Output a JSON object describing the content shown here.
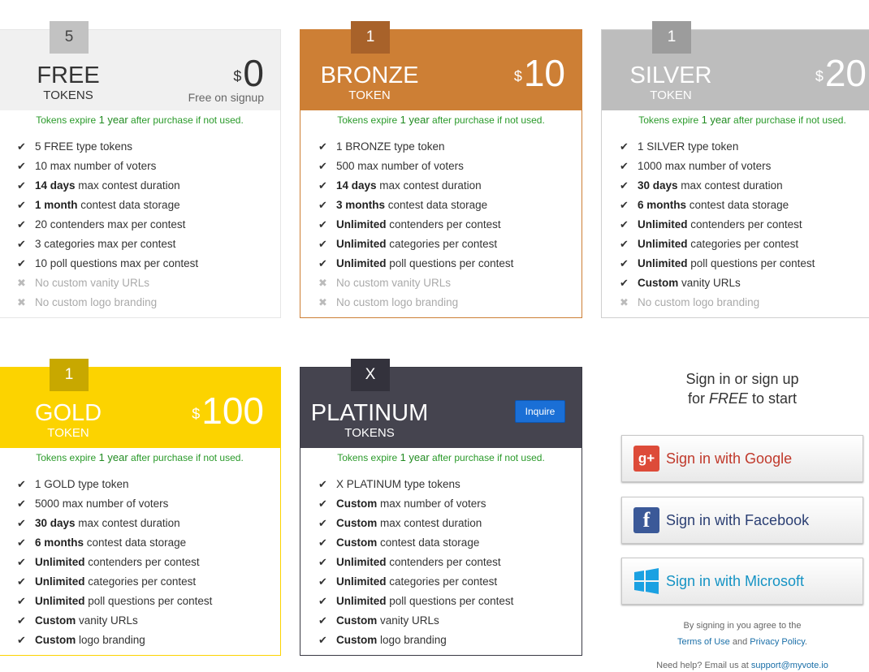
{
  "expire": {
    "pre": "Tokens expire ",
    "bold": "1 year",
    "post": " after purchase if not used."
  },
  "cards": [
    {
      "id": "free",
      "count": "5",
      "title": "FREE",
      "subtitle": "TOKENS",
      "currency": "$",
      "price": "0",
      "note": "Free on signup",
      "colors": {
        "head": "#f0f0f0",
        "badge": "#c2c2c2",
        "text": "#333333",
        "border": "#e6e6e6",
        "badgeText": "#444444"
      },
      "features": [
        {
          "b": "",
          "t": "5 FREE type tokens",
          "ok": true
        },
        {
          "b": "",
          "t": "10 max number of voters",
          "ok": true
        },
        {
          "b": "14 days",
          "t": " max contest duration",
          "ok": true
        },
        {
          "b": "1 month",
          "t": " contest data storage",
          "ok": true
        },
        {
          "b": "",
          "t": "20 contenders max per contest",
          "ok": true
        },
        {
          "b": "",
          "t": "3 categories max per contest",
          "ok": true
        },
        {
          "b": "",
          "t": "10 poll questions max per contest",
          "ok": true
        },
        {
          "b": "",
          "t": "No custom vanity URLs",
          "ok": false
        },
        {
          "b": "",
          "t": "No custom logo branding",
          "ok": false
        }
      ]
    },
    {
      "id": "bronze",
      "count": "1",
      "title": "BRONZE",
      "subtitle": "TOKEN",
      "currency": "$",
      "price": "10",
      "colors": {
        "head": "#cd7f35",
        "badge": "#a8622a",
        "text": "#ffffff",
        "border": "#cd7f35",
        "badgeText": "#ffffff"
      },
      "features": [
        {
          "b": "",
          "t": "1 BRONZE type token",
          "ok": true
        },
        {
          "b": "",
          "t": "500 max number of voters",
          "ok": true
        },
        {
          "b": "14 days",
          "t": " max contest duration",
          "ok": true
        },
        {
          "b": "3 months",
          "t": " contest data storage",
          "ok": true
        },
        {
          "b": "Unlimited",
          "t": " contenders per contest",
          "ok": true
        },
        {
          "b": "Unlimited",
          "t": " categories per contest",
          "ok": true
        },
        {
          "b": "Unlimited",
          "t": " poll questions per contest",
          "ok": true
        },
        {
          "b": "",
          "t": "No custom vanity URLs",
          "ok": false
        },
        {
          "b": "",
          "t": "No custom logo branding",
          "ok": false
        }
      ]
    },
    {
      "id": "silver",
      "count": "1",
      "title": "SILVER",
      "subtitle": "TOKEN",
      "currency": "$",
      "price": "20",
      "colors": {
        "head": "#bdbdbd",
        "badge": "#9c9c9c",
        "text": "#ffffff",
        "border": "#cfcfcf",
        "badgeText": "#ffffff"
      },
      "features": [
        {
          "b": "",
          "t": "1 SILVER type token",
          "ok": true
        },
        {
          "b": "",
          "t": "1000 max number of voters",
          "ok": true
        },
        {
          "b": "30 days",
          "t": " max contest duration",
          "ok": true
        },
        {
          "b": "6 months",
          "t": " contest data storage",
          "ok": true
        },
        {
          "b": "Unlimited",
          "t": " contenders per contest",
          "ok": true
        },
        {
          "b": "Unlimited",
          "t": " categories per contest",
          "ok": true
        },
        {
          "b": "Unlimited",
          "t": " poll questions per contest",
          "ok": true
        },
        {
          "b": "Custom",
          "t": " vanity URLs",
          "ok": true
        },
        {
          "b": "",
          "t": "No custom logo branding",
          "ok": false
        }
      ]
    },
    {
      "id": "gold",
      "count": "1",
      "title": "GOLD",
      "subtitle": "TOKEN",
      "currency": "$",
      "price": "100",
      "colors": {
        "head": "#fcd300",
        "badge": "#c8a800",
        "text": "#ffffff",
        "border": "#fcd300",
        "badgeText": "#ffffff"
      },
      "features": [
        {
          "b": "",
          "t": "1 GOLD type token",
          "ok": true
        },
        {
          "b": "",
          "t": "5000 max number of voters",
          "ok": true
        },
        {
          "b": "30 days",
          "t": " max contest duration",
          "ok": true
        },
        {
          "b": "6 months",
          "t": " contest data storage",
          "ok": true
        },
        {
          "b": "Unlimited",
          "t": " contenders per contest",
          "ok": true
        },
        {
          "b": "Unlimited",
          "t": " categories per contest",
          "ok": true
        },
        {
          "b": "Unlimited",
          "t": " poll questions per contest",
          "ok": true
        },
        {
          "b": "Custom",
          "t": " vanity URLs",
          "ok": true
        },
        {
          "b": "Custom",
          "t": " logo branding",
          "ok": true
        }
      ]
    },
    {
      "id": "platinum",
      "count": "X",
      "title": "PLATINUM",
      "subtitle": "TOKENS",
      "button": "Inquire",
      "colors": {
        "head": "#45444f",
        "badge": "#33323c",
        "text": "#ffffff",
        "border": "#3a3a44",
        "badgeText": "#ffffff"
      },
      "features": [
        {
          "b": "",
          "t": "X PLATINUM type tokens",
          "ok": true
        },
        {
          "b": "Custom",
          "t": " max number of voters",
          "ok": true
        },
        {
          "b": "Custom",
          "t": " max contest duration",
          "ok": true
        },
        {
          "b": "Custom",
          "t": " contest data storage",
          "ok": true
        },
        {
          "b": "Unlimited",
          "t": " contenders per contest",
          "ok": true
        },
        {
          "b": "Unlimited",
          "t": " categories per contest",
          "ok": true
        },
        {
          "b": "Unlimited",
          "t": " poll questions per contest",
          "ok": true
        },
        {
          "b": "Custom",
          "t": " vanity URLs",
          "ok": true
        },
        {
          "b": "Custom",
          "t": " logo branding",
          "ok": true
        }
      ]
    }
  ],
  "signin": {
    "line1": "Sign in or sign up",
    "line2_pre": "for ",
    "line2_em": "FREE",
    "line2_post": " to start",
    "google": "Sign in with Google",
    "facebook": "Sign in with Facebook",
    "microsoft": "Sign in with Microsoft",
    "agree": "By signing in you agree to the",
    "terms": "Terms of Use",
    "and": " and ",
    "privacy": "Privacy Policy",
    "period": ".",
    "help": "Need help? Email us at ",
    "email": "support@myvote.io"
  }
}
